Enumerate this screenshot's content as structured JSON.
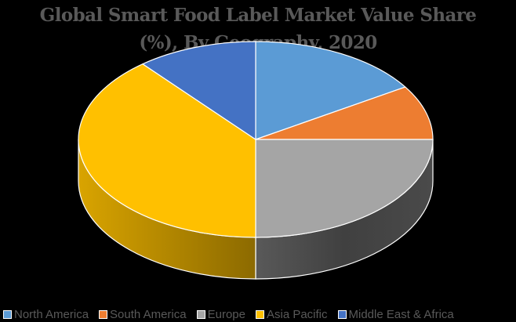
{
  "chart_data": {
    "type": "pie",
    "style": "3d",
    "title": "Global Smart Food Label Market Value Share (%), By Geography, 2020",
    "title_lines": [
      "Global Smart Food Label Market Value Share",
      "(%), By Geography, 2020"
    ],
    "categories": [
      "North America",
      "South America",
      "Europe",
      "Asia Pacific",
      "Middle East & Africa"
    ],
    "values": [
      16,
      9,
      25,
      39,
      11
    ],
    "unit": "%",
    "colors": [
      "#5B9BD5",
      "#ED7D31",
      "#A5A5A5",
      "#FFC000",
      "#4472C4"
    ],
    "legend_position": "bottom"
  },
  "legend": [
    {
      "label": "North America",
      "color": "#5B9BD5"
    },
    {
      "label": "South America",
      "color": "#ED7D31"
    },
    {
      "label": "Europe",
      "color": "#A5A5A5"
    },
    {
      "label": "Asia Pacific",
      "color": "#FFC000"
    },
    {
      "label": "Middle East & Africa",
      "color": "#4472C4"
    }
  ]
}
